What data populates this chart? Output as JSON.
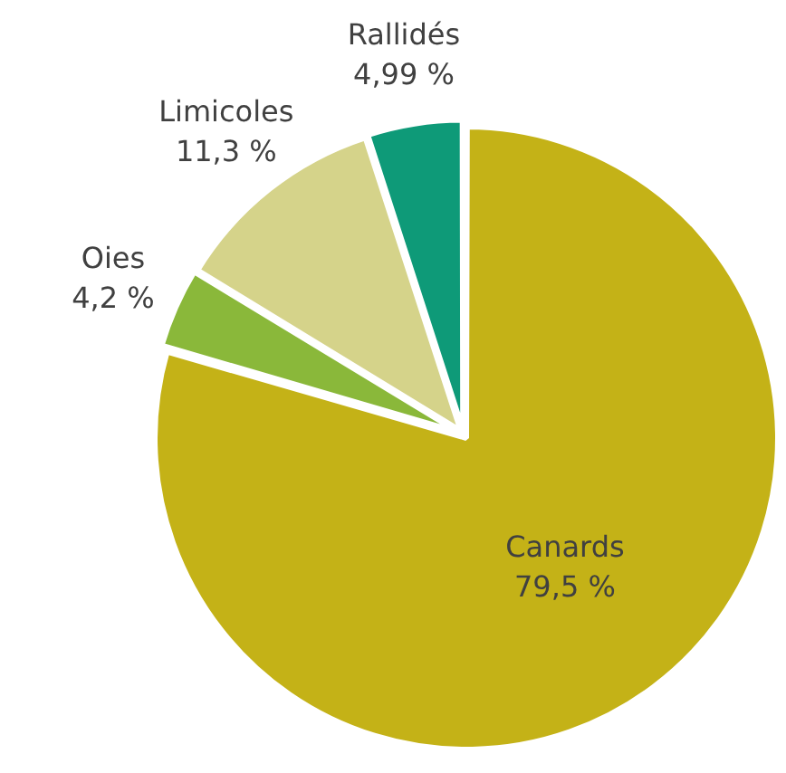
{
  "chart_data": {
    "type": "pie",
    "categories": [
      "Canards",
      "Oies",
      "Limicoles",
      "Rallidés"
    ],
    "values": [
      79.5,
      4.2,
      11.3,
      4.99
    ],
    "colors": [
      "#c4b217",
      "#8ab83a",
      "#d5d38a",
      "#0e9a78"
    ],
    "value_labels": [
      "79,5 %",
      "4,2 %",
      "11,3 %",
      "4,99 %"
    ],
    "legend": false
  }
}
